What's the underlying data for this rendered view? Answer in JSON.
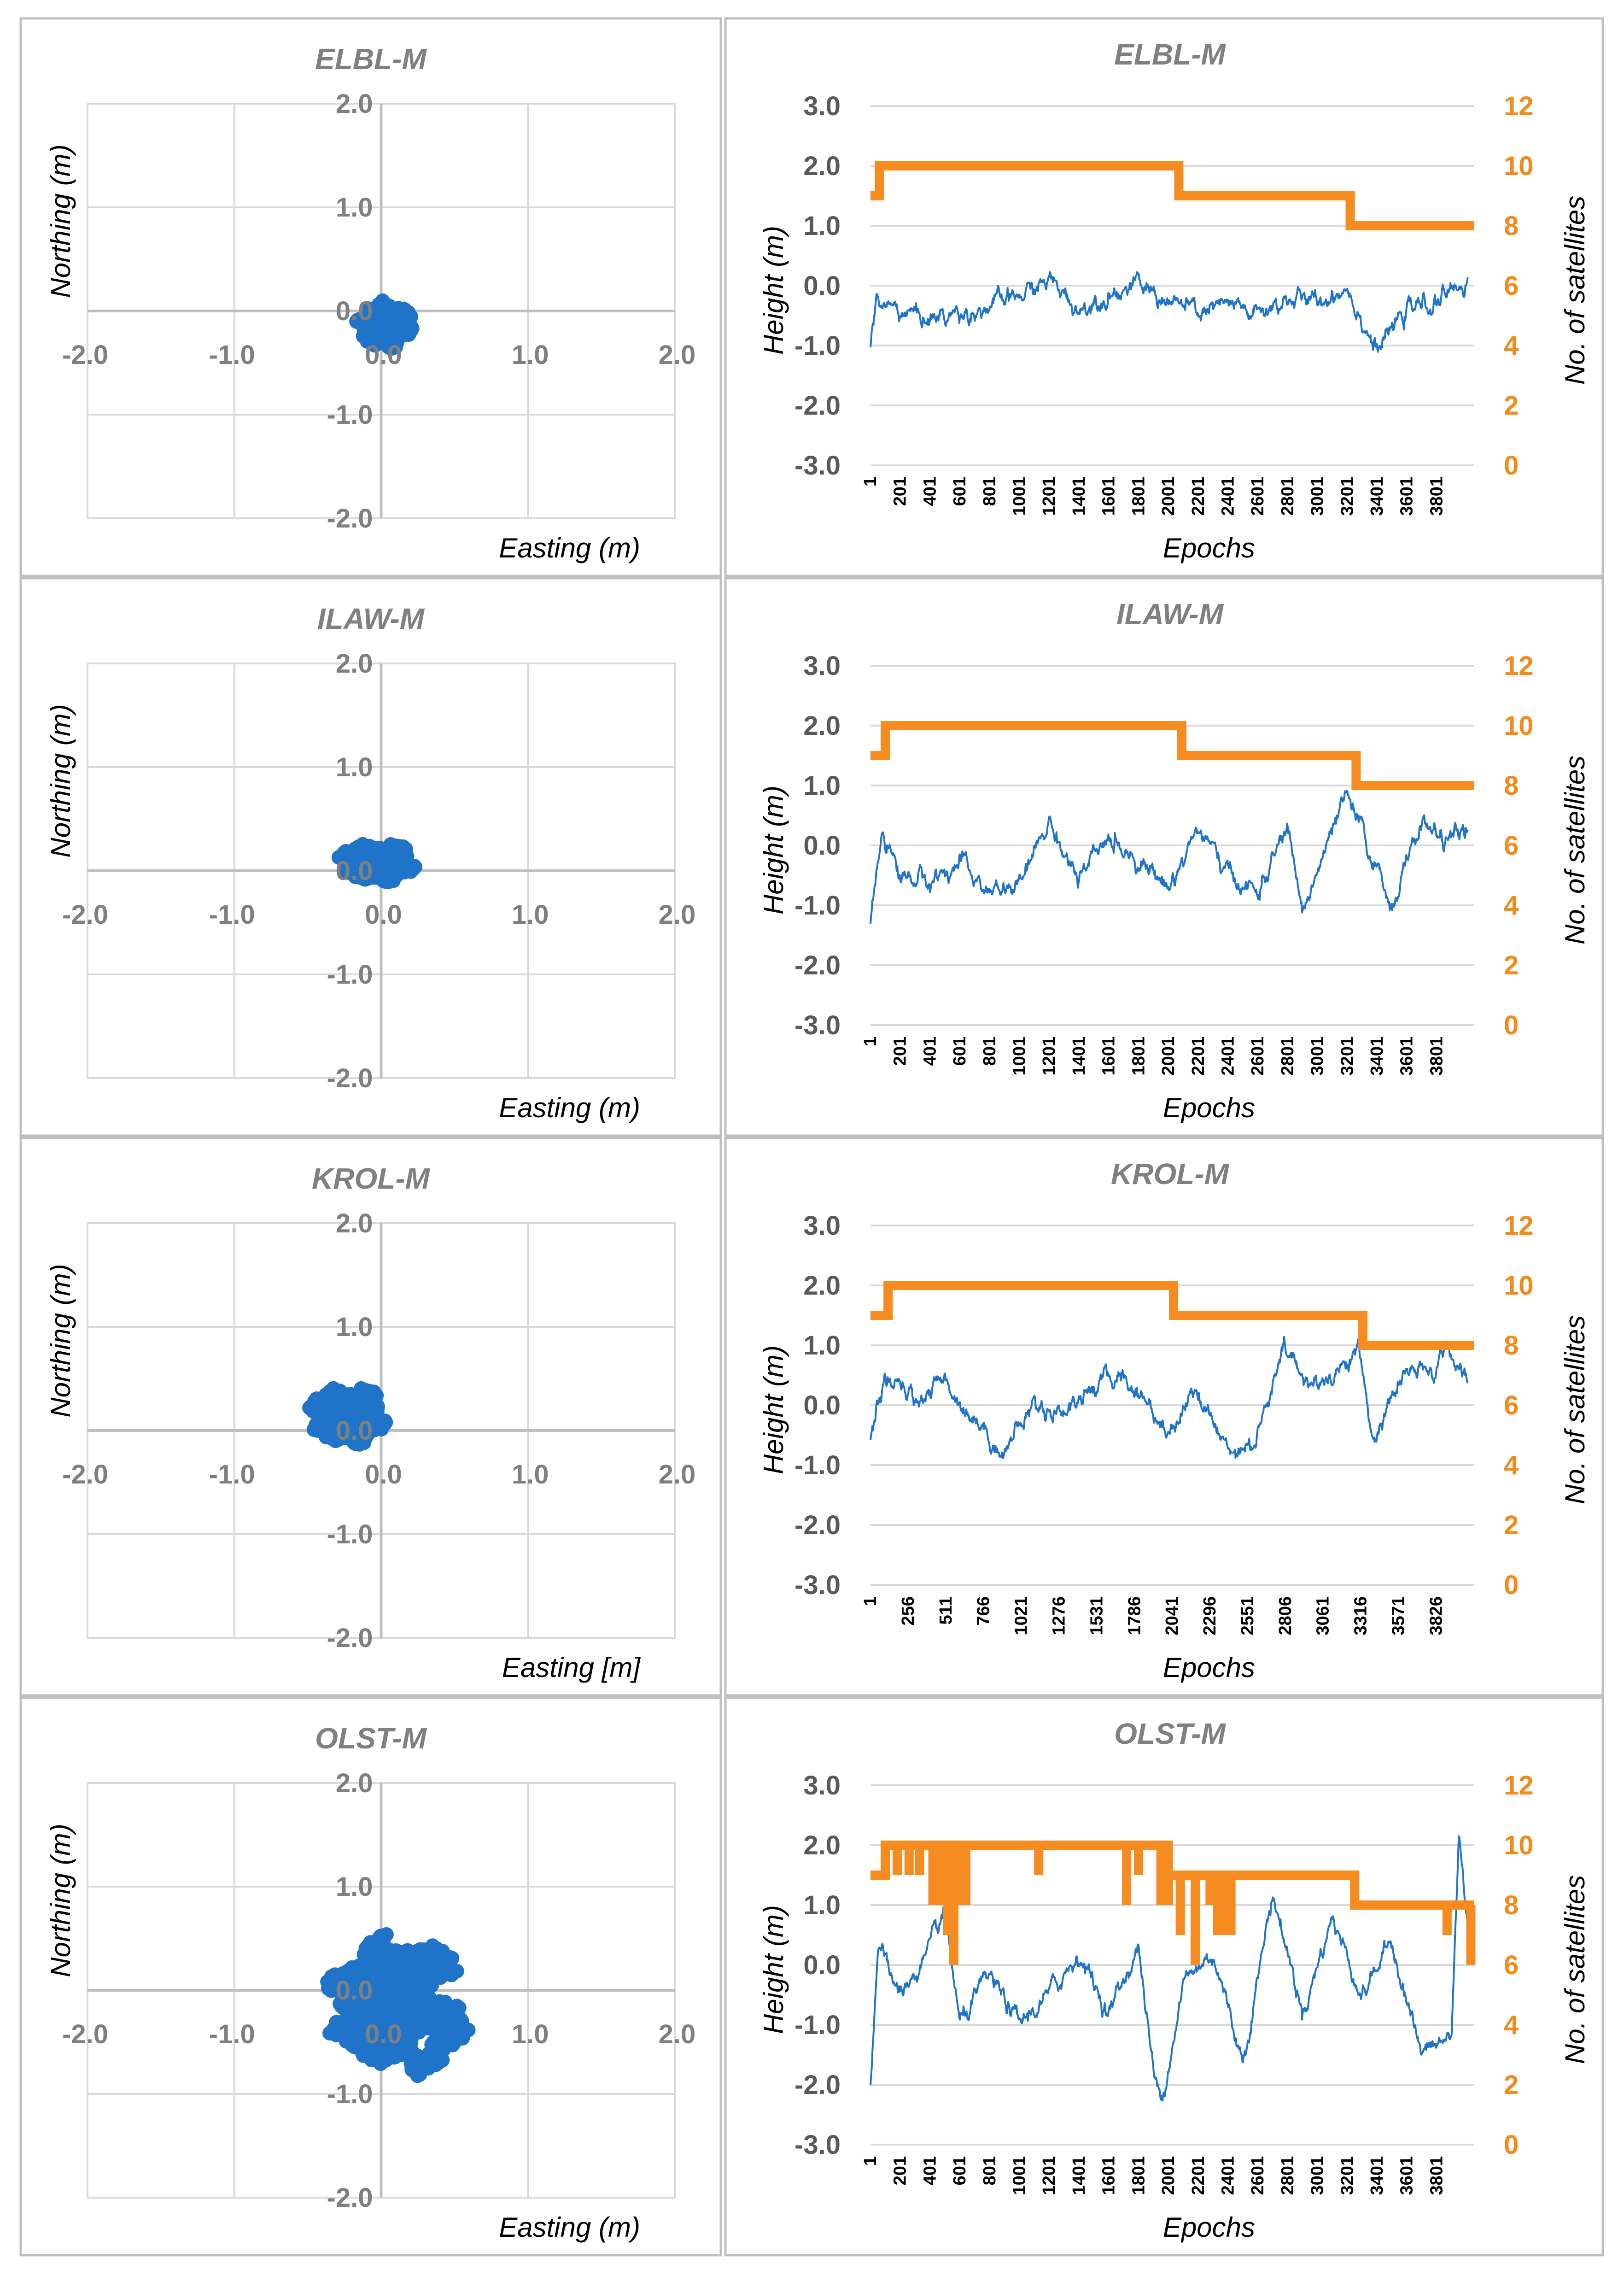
{
  "colors": {
    "scatter": "#1f74c9",
    "height_line": "#1f74c9",
    "satellites": "#f68b1f",
    "grid": "#d9d9d9",
    "frame": "#bfbfbf"
  },
  "chart_data": [
    {
      "type": "scatter",
      "id": "ELBL-scatter",
      "title": "ELBL-M",
      "xlabel": "Easting (m)",
      "ylabel": "Northing (m)",
      "xlim": [
        -2,
        2
      ],
      "ylim": [
        -2,
        2
      ],
      "xticks": [
        "-2.0",
        "-1.0",
        "1.0",
        "2.0"
      ],
      "xtick_values": [
        -2,
        -1,
        1,
        2
      ],
      "yticks": [
        "2.0",
        "1.0",
        "0.0",
        "-1.0",
        "-2.0"
      ],
      "ytick_values": [
        2,
        1,
        0,
        -1,
        -2
      ],
      "origin_label": "0.0",
      "cloud": {
        "center": [
          0.0,
          -0.15
        ],
        "spread": [
          0.12,
          0.16
        ],
        "extent_x": [
          -0.35,
          0.25
        ],
        "extent_y": [
          -0.55,
          0.2
        ]
      }
    },
    {
      "type": "line",
      "id": "ELBL-height",
      "title": "ELBL-M",
      "xlabel": "Epochs",
      "ylabel": "Height (m)",
      "y2label": "No. of satellites",
      "xlim": [
        1,
        4050
      ],
      "ylim": [
        -3,
        3
      ],
      "y2lim": [
        0,
        12
      ],
      "xticks": [
        "1",
        "201",
        "401",
        "601",
        "801",
        "1001",
        "1201",
        "1401",
        "1601",
        "1801",
        "2001",
        "2201",
        "2401",
        "2601",
        "2801",
        "3001",
        "3201",
        "3401",
        "3601",
        "3801"
      ],
      "yticks": [
        "3.0",
        "2.0",
        "1.0",
        "0.0",
        "-1.0",
        "-2.0",
        "-3.0"
      ],
      "ytick_values": [
        3,
        2,
        1,
        0,
        -1,
        -2,
        -3
      ],
      "y2ticks": [
        "12",
        "10",
        "8",
        "6",
        "4",
        "2",
        "0"
      ],
      "y2tick_values": [
        12,
        10,
        8,
        6,
        4,
        2,
        0
      ],
      "height_keypoints": [
        [
          1,
          -1.1
        ],
        [
          40,
          -0.3
        ],
        [
          200,
          -0.4
        ],
        [
          400,
          -0.55
        ],
        [
          600,
          -0.45
        ],
        [
          800,
          -0.35
        ],
        [
          1000,
          -0.2
        ],
        [
          1200,
          0.1
        ],
        [
          1400,
          -0.4
        ],
        [
          1600,
          -0.1
        ],
        [
          1800,
          0.0
        ],
        [
          2000,
          -0.25
        ],
        [
          2200,
          -0.45
        ],
        [
          2400,
          -0.35
        ],
        [
          2600,
          -0.5
        ],
        [
          2800,
          -0.2
        ],
        [
          3000,
          -0.3
        ],
        [
          3200,
          0.0
        ],
        [
          3400,
          -1.1
        ],
        [
          3600,
          -0.4
        ],
        [
          3800,
          -0.3
        ],
        [
          4000,
          0.1
        ]
      ],
      "satellites": [
        [
          1,
          9
        ],
        [
          60,
          10
        ],
        [
          2070,
          9
        ],
        [
          3220,
          8
        ],
        [
          4050,
          8
        ]
      ]
    },
    {
      "type": "scatter",
      "id": "ILAW-scatter",
      "title": "ILAW-M",
      "xlabel": "Easting (m)",
      "ylabel": "Northing (m)",
      "xlim": [
        -2,
        2
      ],
      "ylim": [
        -2,
        2
      ],
      "xticks": [
        "-2.0",
        "-1.0",
        "1.0",
        "2.0"
      ],
      "xtick_values": [
        -2,
        -1,
        1,
        2
      ],
      "yticks": [
        "2.0",
        "1.0",
        "0.0",
        "-1.0",
        "-2.0"
      ],
      "ytick_values": [
        2,
        1,
        0,
        -1,
        -2
      ],
      "origin_label": "0.0",
      "cloud": {
        "center": [
          -0.05,
          0.05
        ],
        "spread": [
          0.16,
          0.12
        ],
        "extent_x": [
          -0.45,
          0.35
        ],
        "extent_y": [
          -0.3,
          0.45
        ]
      }
    },
    {
      "type": "line",
      "id": "ILAW-height",
      "title": "ILAW-M",
      "xlabel": "Epochs",
      "ylabel": "Height (m)",
      "y2label": "No. of satellites",
      "xlim": [
        1,
        4050
      ],
      "ylim": [
        -3,
        3
      ],
      "y2lim": [
        0,
        12
      ],
      "xticks": [
        "1",
        "201",
        "401",
        "601",
        "801",
        "1001",
        "1201",
        "1401",
        "1601",
        "1801",
        "2001",
        "2201",
        "2401",
        "2601",
        "2801",
        "3001",
        "3201",
        "3401",
        "3601",
        "3801"
      ],
      "yticks": [
        "3.0",
        "2.0",
        "1.0",
        "0.0",
        "-1.0",
        "-2.0",
        "-3.0"
      ],
      "ytick_values": [
        3,
        2,
        1,
        0,
        -1,
        -2,
        -3
      ],
      "y2ticks": [
        "12",
        "10",
        "8",
        "6",
        "4",
        "2",
        "0"
      ],
      "y2tick_values": [
        12,
        10,
        8,
        6,
        4,
        2,
        0
      ],
      "height_keypoints": [
        [
          1,
          -1.3
        ],
        [
          80,
          0.3
        ],
        [
          200,
          -0.5
        ],
        [
          400,
          -0.6
        ],
        [
          600,
          -0.3
        ],
        [
          800,
          -0.8
        ],
        [
          1000,
          -0.7
        ],
        [
          1200,
          0.4
        ],
        [
          1400,
          -0.6
        ],
        [
          1600,
          0.1
        ],
        [
          1800,
          -0.2
        ],
        [
          2000,
          -0.7
        ],
        [
          2200,
          0.3
        ],
        [
          2400,
          -0.5
        ],
        [
          2600,
          -0.8
        ],
        [
          2800,
          0.3
        ],
        [
          2900,
          -1.1
        ],
        [
          3100,
          0.2
        ],
        [
          3200,
          0.8
        ],
        [
          3400,
          -0.4
        ],
        [
          3500,
          -1.0
        ],
        [
          3700,
          0.4
        ],
        [
          3850,
          0.1
        ],
        [
          4000,
          0.2
        ]
      ],
      "satellites": [
        [
          1,
          9
        ],
        [
          100,
          10
        ],
        [
          2090,
          9
        ],
        [
          3260,
          8
        ],
        [
          4050,
          8
        ]
      ]
    },
    {
      "type": "scatter",
      "id": "KROL-scatter",
      "title": "KROL-M",
      "xlabel": "Easting [m]",
      "ylabel": "Northing (m)",
      "xlim": [
        -2,
        2
      ],
      "ylim": [
        -2,
        2
      ],
      "xticks": [
        "-2.0",
        "-1.0",
        "1.0",
        "2.0"
      ],
      "xtick_values": [
        -2,
        -1,
        1,
        2
      ],
      "yticks": [
        "2.0",
        "1.0",
        "0.0",
        "-1.0",
        "-2.0"
      ],
      "ytick_values": [
        2,
        1,
        0,
        -1,
        -2
      ],
      "origin_label": "0.0",
      "cloud": {
        "center": [
          -0.25,
          0.1
        ],
        "spread": [
          0.16,
          0.18
        ],
        "extent_x": [
          -0.7,
          0.35
        ],
        "extent_y": [
          -0.6,
          0.6
        ]
      }
    },
    {
      "type": "line",
      "id": "KROL-height",
      "title": "KROL-M",
      "xlabel": "Epochs",
      "ylabel": "Height (m)",
      "y2label": "No. of satellites",
      "xlim": [
        1,
        4080
      ],
      "ylim": [
        -3,
        3
      ],
      "y2lim": [
        0,
        12
      ],
      "xticks": [
        "1",
        "256",
        "511",
        "766",
        "1021",
        "1276",
        "1531",
        "1786",
        "2041",
        "2296",
        "2551",
        "2806",
        "3061",
        "3316",
        "3571",
        "3826"
      ],
      "yticks": [
        "3.0",
        "2.0",
        "1.0",
        "0.0",
        "-1.0",
        "-2.0",
        "-3.0"
      ],
      "ytick_values": [
        3,
        2,
        1,
        0,
        -1,
        -2,
        -3
      ],
      "y2ticks": [
        "12",
        "10",
        "8",
        "6",
        "4",
        "2",
        "0"
      ],
      "y2tick_values": [
        12,
        10,
        8,
        6,
        4,
        2,
        0
      ],
      "height_keypoints": [
        [
          1,
          -0.6
        ],
        [
          100,
          0.4
        ],
        [
          300,
          0.1
        ],
        [
          500,
          0.4
        ],
        [
          700,
          -0.2
        ],
        [
          900,
          -0.8
        ],
        [
          1100,
          0.0
        ],
        [
          1300,
          -0.1
        ],
        [
          1500,
          0.3
        ],
        [
          1700,
          0.5
        ],
        [
          1900,
          0.0
        ],
        [
          2000,
          -0.5
        ],
        [
          2200,
          0.3
        ],
        [
          2400,
          -0.7
        ],
        [
          2600,
          -0.6
        ],
        [
          2800,
          0.9
        ],
        [
          3000,
          0.3
        ],
        [
          3200,
          0.7
        ],
        [
          3300,
          0.9
        ],
        [
          3400,
          -0.6
        ],
        [
          3600,
          0.5
        ],
        [
          3800,
          0.5
        ],
        [
          3900,
          1.1
        ],
        [
          4000,
          0.4
        ]
      ],
      "satellites": [
        [
          1,
          9
        ],
        [
          120,
          10
        ],
        [
          2050,
          9
        ],
        [
          3330,
          8
        ],
        [
          4080,
          8
        ]
      ]
    },
    {
      "type": "scatter",
      "id": "OLST-scatter",
      "title": "OLST-M",
      "xlabel": "Easting (m)",
      "ylabel": "Northing (m)",
      "xlim": [
        -2,
        2
      ],
      "ylim": [
        -2,
        2
      ],
      "xticks": [
        "-2.0",
        "-1.0",
        "1.0",
        "2.0"
      ],
      "xtick_values": [
        -2,
        -1,
        1,
        2
      ],
      "yticks": [
        "2.0",
        "1.0",
        "0.0",
        "-1.0",
        "-2.0"
      ],
      "ytick_values": [
        2,
        1,
        0,
        -1,
        -2
      ],
      "origin_label": "0.0",
      "cloud": {
        "center": [
          0.05,
          -0.2
        ],
        "spread": [
          0.32,
          0.42
        ],
        "extent_x": [
          -0.85,
          0.75
        ],
        "extent_y": [
          -1.3,
          1.1
        ]
      }
    },
    {
      "type": "line",
      "id": "OLST-height",
      "title": "OLST-M",
      "xlabel": "Epochs",
      "ylabel": "Height (m)",
      "y2label": "No. of satellites",
      "xlim": [
        1,
        4050
      ],
      "ylim": [
        -3,
        3
      ],
      "y2lim": [
        0,
        12
      ],
      "xticks": [
        "1",
        "201",
        "401",
        "601",
        "801",
        "1001",
        "1201",
        "1401",
        "1601",
        "1801",
        "2001",
        "2201",
        "2401",
        "2601",
        "2801",
        "3001",
        "3201",
        "3401",
        "3601",
        "3801"
      ],
      "yticks": [
        "3.0",
        "2.0",
        "1.0",
        "0.0",
        "-1.0",
        "-2.0",
        "-3.0"
      ],
      "ytick_values": [
        3,
        2,
        1,
        0,
        -1,
        -2,
        -3
      ],
      "y2ticks": [
        "12",
        "10",
        "8",
        "6",
        "4",
        "2",
        "0"
      ],
      "y2tick_values": [
        12,
        10,
        8,
        6,
        4,
        2,
        0
      ],
      "height_keypoints": [
        [
          1,
          -2.0
        ],
        [
          50,
          0.3
        ],
        [
          200,
          -0.5
        ],
        [
          400,
          0.2
        ],
        [
          500,
          0.9
        ],
        [
          600,
          -1.0
        ],
        [
          800,
          -0.2
        ],
        [
          1000,
          -1.0
        ],
        [
          1200,
          -0.5
        ],
        [
          1400,
          0.2
        ],
        [
          1600,
          -0.8
        ],
        [
          1800,
          0.3
        ],
        [
          1900,
          -1.8
        ],
        [
          1950,
          -2.3
        ],
        [
          2100,
          -0.3
        ],
        [
          2300,
          0.2
        ],
        [
          2500,
          -1.6
        ],
        [
          2700,
          1.2
        ],
        [
          2900,
          -0.8
        ],
        [
          3100,
          0.8
        ],
        [
          3300,
          -0.5
        ],
        [
          3500,
          0.4
        ],
        [
          3700,
          -1.5
        ],
        [
          3900,
          -1.2
        ],
        [
          3950,
          2.2
        ],
        [
          4050,
          -0.5
        ]
      ],
      "satellites": [
        [
          1,
          9
        ],
        [
          100,
          10
        ],
        [
          2000,
          9
        ],
        [
          3250,
          8
        ],
        [
          4050,
          8
        ]
      ],
      "satellite_dips": [
        [
          180,
          9
        ],
        [
          260,
          9
        ],
        [
          330,
          9
        ],
        [
          420,
          8
        ],
        [
          460,
          8
        ],
        [
          520,
          7
        ],
        [
          560,
          6
        ],
        [
          600,
          8
        ],
        [
          640,
          8
        ],
        [
          1130,
          9
        ],
        [
          1720,
          8
        ],
        [
          1800,
          9
        ],
        [
          1950,
          8
        ],
        [
          2000,
          8
        ],
        [
          2080,
          7
        ],
        [
          2180,
          6
        ],
        [
          2280,
          8
        ],
        [
          2330,
          7
        ],
        [
          2370,
          7
        ],
        [
          2420,
          7
        ],
        [
          3870,
          7
        ],
        [
          4030,
          6
        ]
      ]
    }
  ]
}
